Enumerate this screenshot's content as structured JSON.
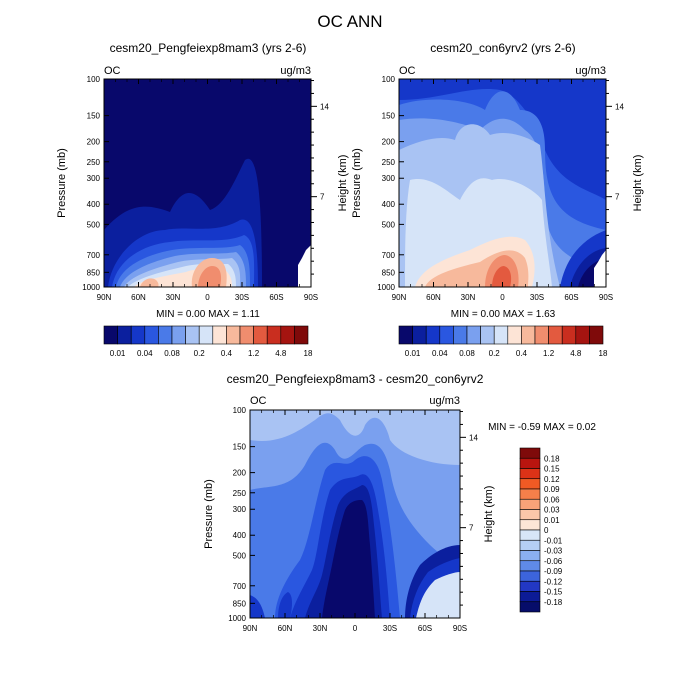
{
  "page_title": "OC ANN",
  "chart_data": [
    {
      "type": "heatmap",
      "title": "cesm20_Pengfeiexp8mam3 (yrs 2-6)",
      "left_label": "OC",
      "right_label": "ug/m3",
      "ylabel": "Pressure (mb)",
      "ylabel_right": "Height (km)",
      "x_ticks": [
        "90N",
        "60N",
        "30N",
        "0",
        "30S",
        "60S",
        "90S"
      ],
      "y_ticks": [
        "100",
        "150",
        "200",
        "250",
        "300",
        "400",
        "500",
        "700",
        "850",
        "1000"
      ],
      "height_ticks": [
        "14",
        "7"
      ],
      "xlim": [
        90,
        -90
      ],
      "ylim": [
        1000,
        100
      ],
      "min_max_text": "MIN =   0.00   MAX =   1.11",
      "colorbar_labels": [
        "0.01",
        "0.04",
        "0.08",
        "0.2",
        "0.4",
        "1.2",
        "4.8",
        "18"
      ],
      "colorbar_orientation": "horizontal"
    },
    {
      "type": "heatmap",
      "title": "cesm20_con6yrv2 (yrs 2-6)",
      "left_label": "OC",
      "right_label": "ug/m3",
      "ylabel": "Pressure (mb)",
      "ylabel_right": "Height (km)",
      "x_ticks": [
        "90N",
        "60N",
        "30N",
        "0",
        "30S",
        "60S",
        "90S"
      ],
      "y_ticks": [
        "100",
        "150",
        "200",
        "250",
        "300",
        "400",
        "500",
        "700",
        "850",
        "1000"
      ],
      "height_ticks": [
        "14",
        "7"
      ],
      "xlim": [
        90,
        -90
      ],
      "ylim": [
        1000,
        100
      ],
      "min_max_text": "MIN =   0.00   MAX =   1.63",
      "colorbar_labels": [
        "0.01",
        "0.04",
        "0.08",
        "0.2",
        "0.4",
        "1.2",
        "4.8",
        "18"
      ],
      "colorbar_orientation": "horizontal"
    },
    {
      "type": "heatmap",
      "title": "cesm20_Pengfeiexp8mam3 - cesm20_con6yrv2",
      "left_label": "OC",
      "right_label": "ug/m3",
      "ylabel": "Pressure (mb)",
      "ylabel_right": "Height (km)",
      "x_ticks": [
        "90N",
        "60N",
        "30N",
        "0",
        "30S",
        "60S",
        "90S"
      ],
      "y_ticks": [
        "100",
        "150",
        "200",
        "250",
        "300",
        "400",
        "500",
        "700",
        "850",
        "1000"
      ],
      "height_ticks": [
        "14",
        "7"
      ],
      "xlim": [
        90,
        -90
      ],
      "ylim": [
        1000,
        100
      ],
      "min_max_text": "MIN =  -0.59   MAX =   0.02",
      "colorbar_labels": [
        "0.18",
        "0.15",
        "0.12",
        "0.09",
        "0.06",
        "0.03",
        "0.01",
        "0",
        "-0.01",
        "-0.03",
        "-0.06",
        "-0.09",
        "-0.12",
        "-0.15",
        "-0.18"
      ],
      "colorbar_orientation": "vertical"
    }
  ],
  "colorbar_colors": {
    "abs": [
      "#08086b",
      "#0b1f9e",
      "#1537c9",
      "#2a57e0",
      "#4a7ae8",
      "#7aa0ef",
      "#a9c3f3",
      "#d6e4f8",
      "#fde4d6",
      "#f7b99c",
      "#f08d6e",
      "#e35a3f",
      "#c92e1f",
      "#a51410",
      "#7f0a0a"
    ],
    "diff_top_to_bottom": [
      "#7f0a0a",
      "#b8150f",
      "#dc3217",
      "#f05a24",
      "#f57f4a",
      "#f9a379",
      "#fbc6a9",
      "#fde6d6",
      "#d7e6f8",
      "#b5cff5",
      "#8aaff0",
      "#5f8ae8",
      "#3c64dc",
      "#2238c4",
      "#0c1b96",
      "#060d6a"
    ]
  }
}
